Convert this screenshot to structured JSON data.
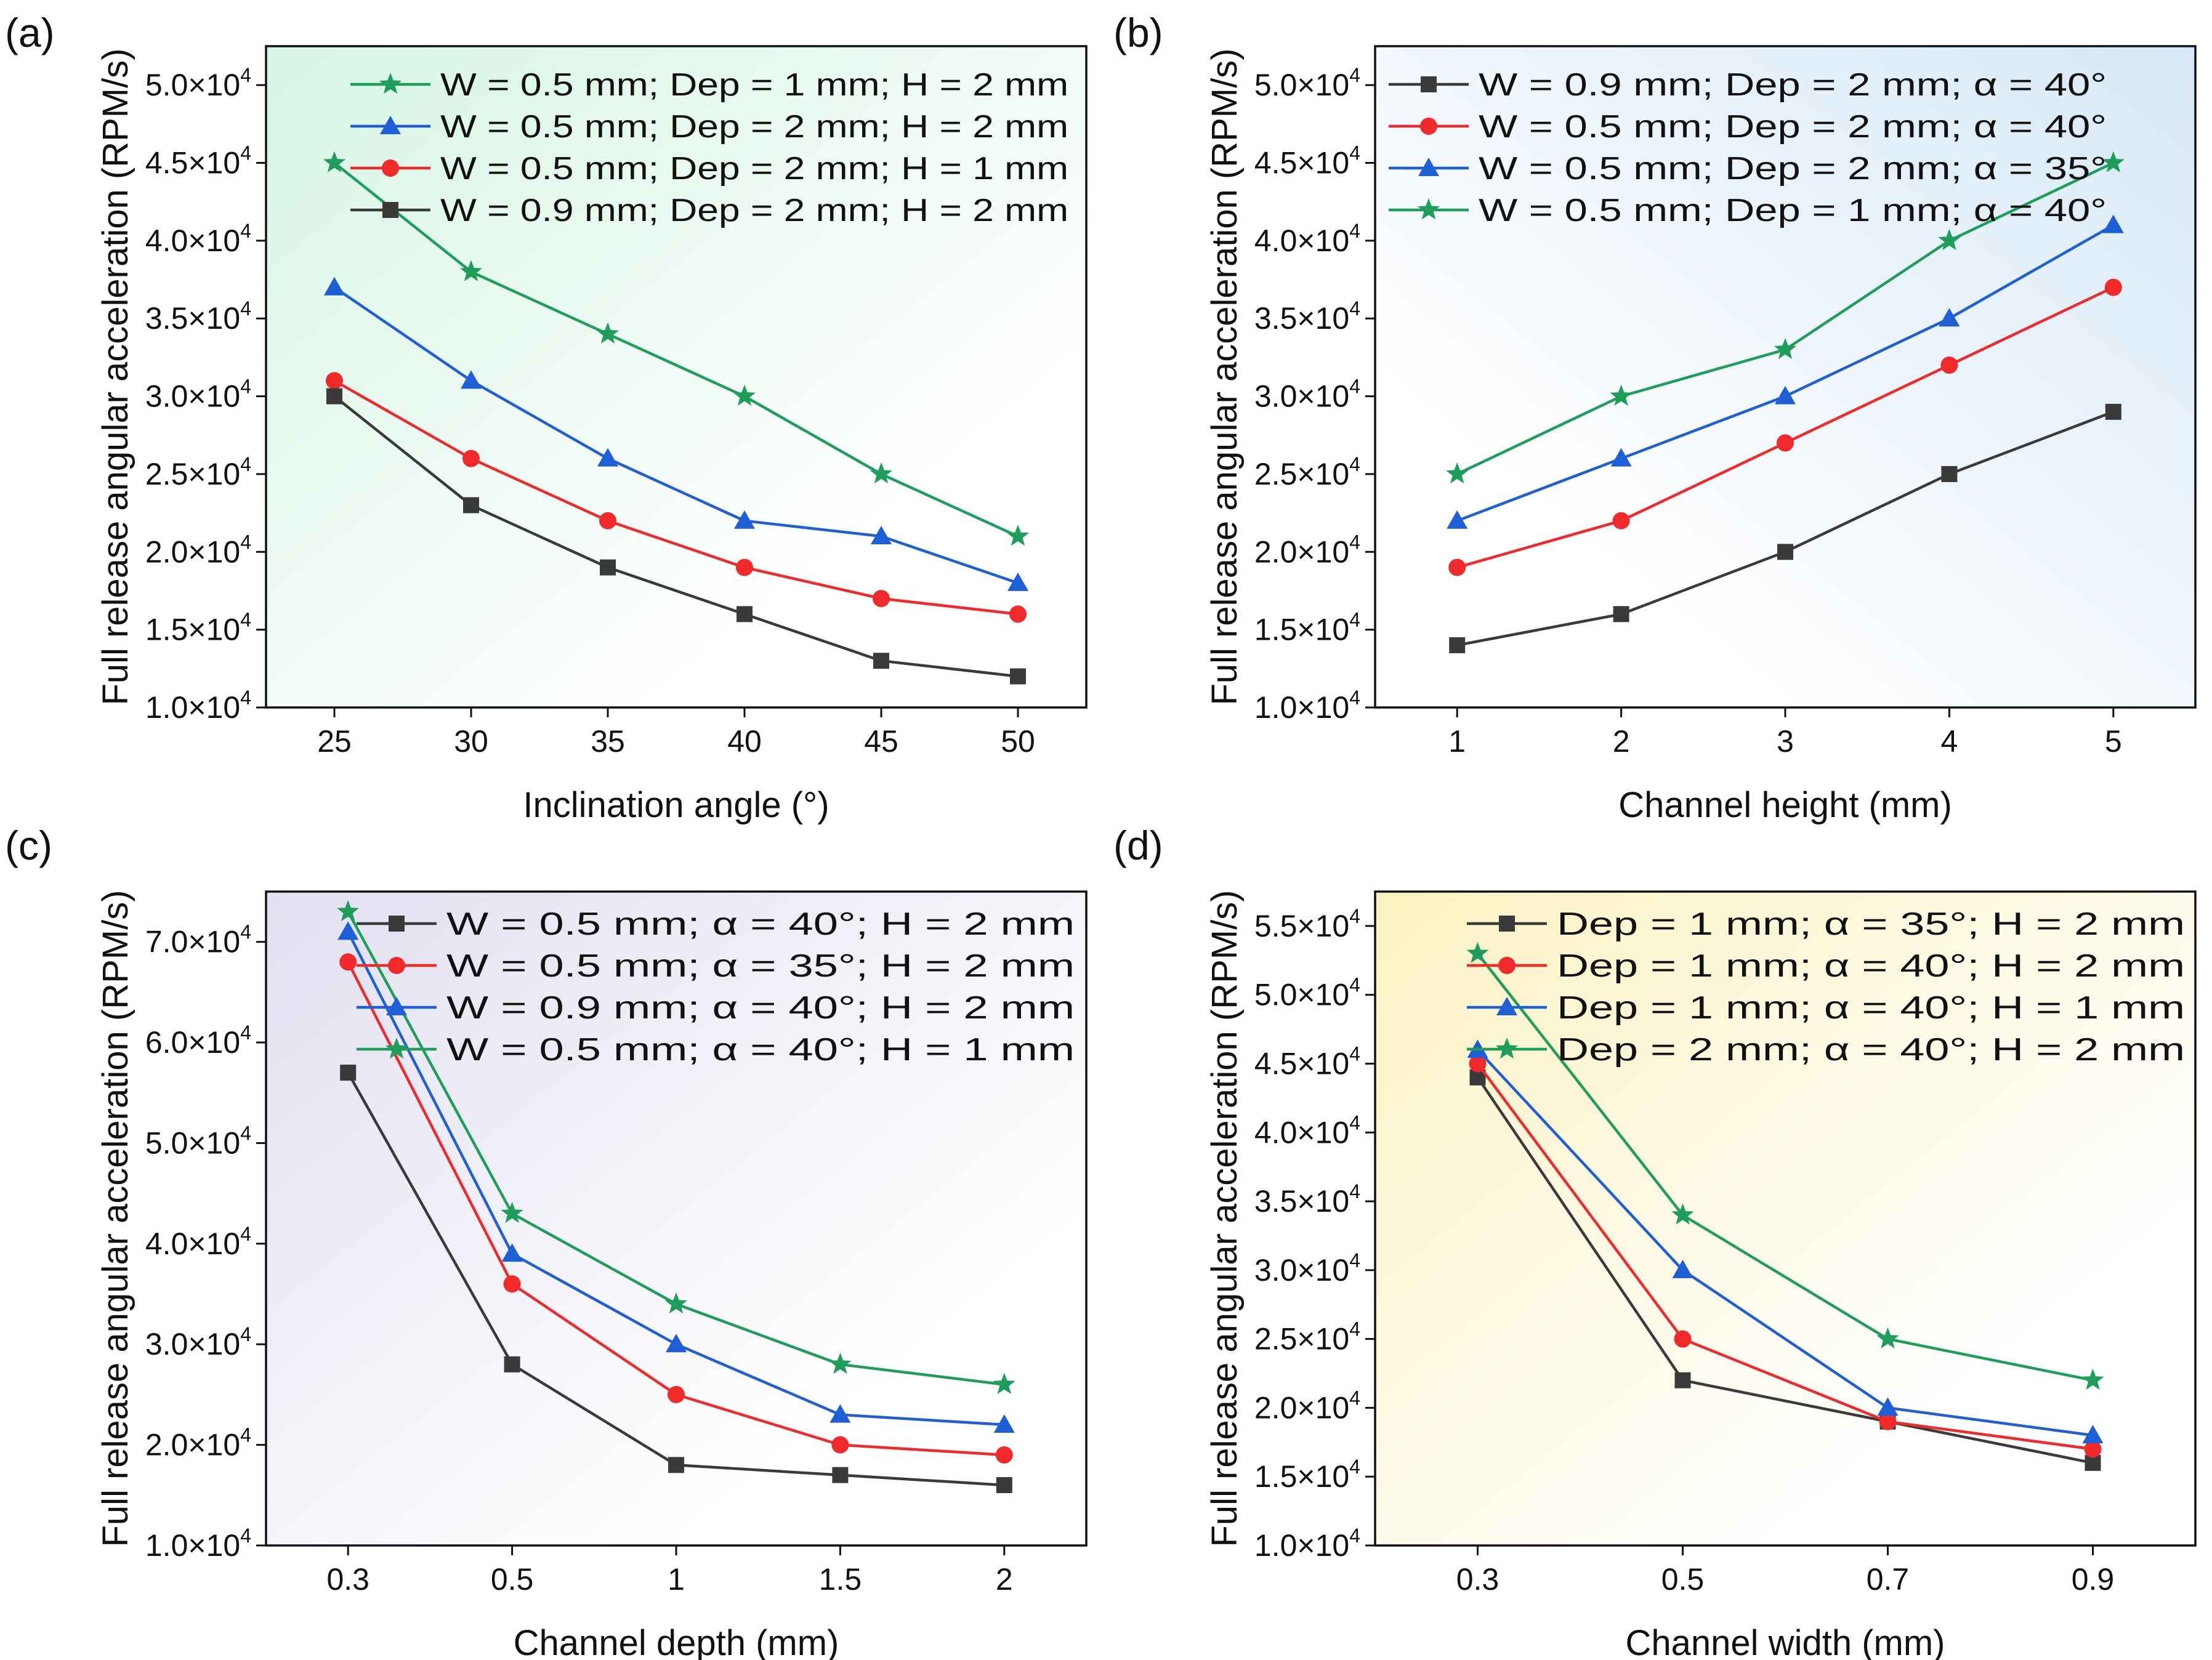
{
  "figure": {
    "panel_labels": [
      "(a)",
      "(b)",
      "(c)",
      "(d)"
    ]
  },
  "chart_data": [
    {
      "type": "line",
      "panel": "(a)",
      "xlabel": "Inclination angle (°)",
      "ylabel": "Full release angular acceleration (RPM/s)",
      "x": [
        25,
        30,
        35,
        40,
        45,
        50
      ],
      "x_ticks": [
        "25",
        "30",
        "35",
        "40",
        "45",
        "50"
      ],
      "xlim": [
        22.5,
        52.5
      ],
      "ylim": [
        10000,
        52500
      ],
      "y_ticks": [
        10000,
        15000,
        20000,
        25000,
        30000,
        35000,
        40000,
        45000,
        50000
      ],
      "y_tick_labels": [
        "1.0×10⁴",
        "1.5×10⁴",
        "2.0×10⁴",
        "2.5×10⁴",
        "3.0×10⁴",
        "3.5×10⁴",
        "4.0×10⁴",
        "4.5×10⁴",
        "5.0×10⁴"
      ],
      "background": {
        "tint": "#d6f5e4",
        "tint_corner": "top-left"
      },
      "legend_position": "top-right",
      "series": [
        {
          "name": "W = 0.5 mm; Dep = 1 mm; H = 2 mm",
          "color": "#1e9e5a",
          "marker": "star",
          "values": [
            45000,
            38000,
            34000,
            30000,
            25000,
            21000
          ]
        },
        {
          "name": "W = 0.5 mm; Dep = 2 mm; H = 2 mm",
          "color": "#1f5fd6",
          "marker": "triangle",
          "values": [
            37000,
            31000,
            26000,
            22000,
            21000,
            18000
          ]
        },
        {
          "name": "W = 0.5 mm; Dep = 2 mm; H = 1 mm",
          "color": "#f02a2a",
          "marker": "circle",
          "values": [
            31000,
            26000,
            22000,
            19000,
            17000,
            16000
          ]
        },
        {
          "name": "W = 0.9 mm; Dep = 2 mm; H = 2 mm",
          "color": "#3a3a3a",
          "marker": "square",
          "values": [
            30000,
            23000,
            19000,
            16000,
            13000,
            12000
          ]
        }
      ]
    },
    {
      "type": "line",
      "panel": "(b)",
      "xlabel": "Channel height (mm)",
      "ylabel": "Full release angular acceleration (RPM/s)",
      "x": [
        1,
        2,
        3,
        4,
        5
      ],
      "x_ticks": [
        "1",
        "2",
        "3",
        "4",
        "5"
      ],
      "xlim": [
        0.5,
        5.5
      ],
      "ylim": [
        10000,
        52500
      ],
      "y_ticks": [
        10000,
        15000,
        20000,
        25000,
        30000,
        35000,
        40000,
        45000,
        50000
      ],
      "y_tick_labels": [
        "1.0×10⁴",
        "1.5×10⁴",
        "2.0×10⁴",
        "2.5×10⁴",
        "3.0×10⁴",
        "3.5×10⁴",
        "4.0×10⁴",
        "4.5×10⁴",
        "5.0×10⁴"
      ],
      "background": {
        "tint": "#d6e8f6",
        "tint_corner": "top-right"
      },
      "legend_position": "top-left",
      "series": [
        {
          "name": "W = 0.9 mm; Dep = 2 mm; α = 40°",
          "color": "#3a3a3a",
          "marker": "square",
          "values": [
            14000,
            16000,
            20000,
            25000,
            29000
          ]
        },
        {
          "name": "W = 0.5 mm; Dep = 2 mm; α = 40°",
          "color": "#f02a2a",
          "marker": "circle",
          "values": [
            19000,
            22000,
            27000,
            32000,
            37000
          ]
        },
        {
          "name": "W = 0.5 mm; Dep = 2 mm; α = 35°",
          "color": "#1f5fd6",
          "marker": "triangle",
          "values": [
            22000,
            26000,
            30000,
            35000,
            41000
          ]
        },
        {
          "name": "W = 0.5 mm; Dep = 1 mm; α = 40°",
          "color": "#1e9e5a",
          "marker": "star",
          "values": [
            25000,
            30000,
            33000,
            40000,
            45000
          ]
        }
      ]
    },
    {
      "type": "line",
      "panel": "(c)",
      "xlabel": "Channel depth (mm)",
      "ylabel": "Full release angular acceleration (RPM/s)",
      "x": [
        "0.3",
        "0.5",
        "1",
        "1.5",
        "2"
      ],
      "x_ticks": [
        "0.3",
        "0.5",
        "1",
        "1.5",
        "2"
      ],
      "xlim": [
        -0.5,
        4.5
      ],
      "ylim": [
        10000,
        75000
      ],
      "y_ticks": [
        10000,
        20000,
        30000,
        40000,
        50000,
        60000,
        70000
      ],
      "y_tick_labels": [
        "1.0×10⁴",
        "2.0×10⁴",
        "3.0×10⁴",
        "4.0×10⁴",
        "5.0×10⁴",
        "6.0×10⁴",
        "7.0×10⁴"
      ],
      "background": {
        "tint": "#e1e0f0",
        "tint_corner": "top-left"
      },
      "legend_position": "top-right",
      "series": [
        {
          "name": "W = 0.5 mm; α = 40°; H = 2 mm",
          "color": "#3a3a3a",
          "marker": "square",
          "values": [
            57000,
            28000,
            18000,
            17000,
            16000
          ]
        },
        {
          "name": "W = 0.5 mm; α = 35°; H = 2 mm",
          "color": "#f02a2a",
          "marker": "circle",
          "values": [
            68000,
            36000,
            25000,
            20000,
            19000
          ]
        },
        {
          "name": "W = 0.9 mm; α = 40°; H = 2 mm",
          "color": "#1f5fd6",
          "marker": "triangle",
          "values": [
            71000,
            39000,
            30000,
            23000,
            22000
          ]
        },
        {
          "name": "W = 0.5 mm; α = 40°; H = 1 mm",
          "color": "#1e9e5a",
          "marker": "star",
          "values": [
            73000,
            43000,
            34000,
            28000,
            26000
          ]
        }
      ]
    },
    {
      "type": "line",
      "panel": "(d)",
      "xlabel": "Channel width (mm)",
      "ylabel": "Full release angular acceleration (RPM/s)",
      "x": [
        0.3,
        0.5,
        0.7,
        0.9
      ],
      "x_ticks": [
        "0.3",
        "0.5",
        "0.7",
        "0.9"
      ],
      "xlim": [
        0.2,
        1.0
      ],
      "ylim": [
        10000,
        57500
      ],
      "y_ticks": [
        10000,
        15000,
        20000,
        25000,
        30000,
        35000,
        40000,
        45000,
        50000,
        55000
      ],
      "y_tick_labels": [
        "1.0×10⁴",
        "1.5×10⁴",
        "2.0×10⁴",
        "2.5×10⁴",
        "3.0×10⁴",
        "3.5×10⁴",
        "4.0×10⁴",
        "4.5×10⁴",
        "5.0×10⁴",
        "5.5×10⁴"
      ],
      "background": {
        "tint": "#fbf2c2",
        "tint_corner": "top-left"
      },
      "legend_position": "top-right",
      "series": [
        {
          "name": "Dep = 1 mm; α = 35°; H = 2 mm",
          "color": "#3a3a3a",
          "marker": "square",
          "values": [
            44000,
            22000,
            19000,
            16000
          ]
        },
        {
          "name": "Dep = 1 mm; α = 40°; H = 2 mm",
          "color": "#f02a2a",
          "marker": "circle",
          "values": [
            45000,
            25000,
            19000,
            17000
          ]
        },
        {
          "name": "Dep = 1 mm; α = 40°; H = 1 mm",
          "color": "#1f5fd6",
          "marker": "triangle",
          "values": [
            46000,
            30000,
            20000,
            18000
          ]
        },
        {
          "name": "Dep = 2 mm; α = 40°; H = 2 mm",
          "color": "#1e9e5a",
          "marker": "star",
          "values": [
            53000,
            34000,
            25000,
            22000
          ]
        }
      ]
    }
  ]
}
